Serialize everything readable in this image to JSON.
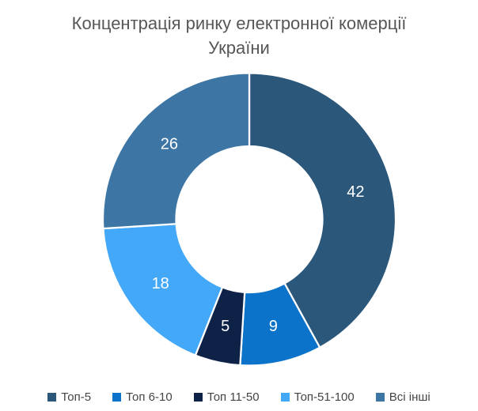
{
  "chart_data": {
    "type": "pie",
    "subtype": "donut",
    "title": "Концентрація ринку електронної комерції України",
    "categories": [
      "Топ-5",
      "Топ 6-10",
      "Топ 11-50",
      "Топ-51-100",
      "Всі інші"
    ],
    "values": [
      42,
      9,
      5,
      18,
      26
    ],
    "colors": [
      "#2B577B",
      "#0B73CA",
      "#0E2147",
      "#43A8F8",
      "#3D76A5"
    ],
    "start_angle_deg": 0,
    "direction": "clockwise",
    "inner_radius_ratio": 0.5,
    "data_label_color": "#FFFFFF",
    "segment_border_color": "#FFFFFF",
    "legend_position": "bottom",
    "title_color": "#575757",
    "legend_text_color": "#454545",
    "background": "#FFFFFF"
  }
}
